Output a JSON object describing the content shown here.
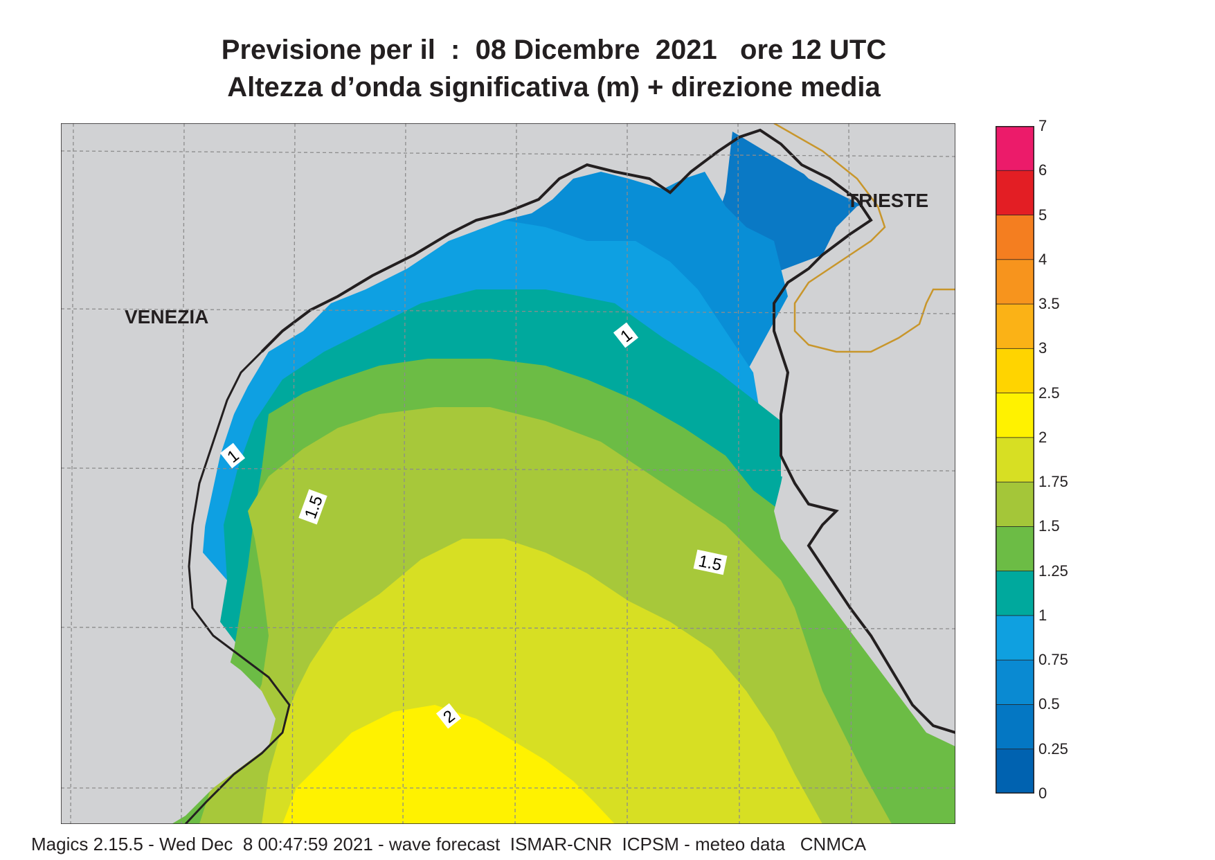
{
  "title": {
    "line1": "Previsione per il  :  08 Dicembre  2021   ore 12 UTC",
    "line2": "Altezza d’onda significativa (m) + direzione media"
  },
  "places": [
    {
      "name": "VENEZIA"
    },
    {
      "name": "TRIESTE"
    }
  ],
  "contour_labels": [
    "1",
    "1",
    "1.5",
    "1.5",
    "2"
  ],
  "legend": {
    "ticks": [
      "7",
      "6",
      "5",
      "4",
      "3.5",
      "3",
      "2.5",
      "2",
      "1.75",
      "1.5",
      "1.25",
      "1",
      "0.75",
      "0.5",
      "0.25",
      "0"
    ],
    "colors": [
      "#ec1b6a",
      "#e31e24",
      "#f47e20",
      "#f7941d",
      "#fbb216",
      "#ffd400",
      "#fff200",
      "#d7df23",
      "#a4c639",
      "#6cbc45",
      "#00a99d",
      "#0fa0e0",
      "#0a8ad2",
      "#0477c3",
      "#0062b0"
    ]
  },
  "footer": "Magics 2.15.5 - Wed Dec  8 00:47:59 2021 - wave forecast  ISMAR-CNR  ICPSM - meteo data   CNMCA"
}
